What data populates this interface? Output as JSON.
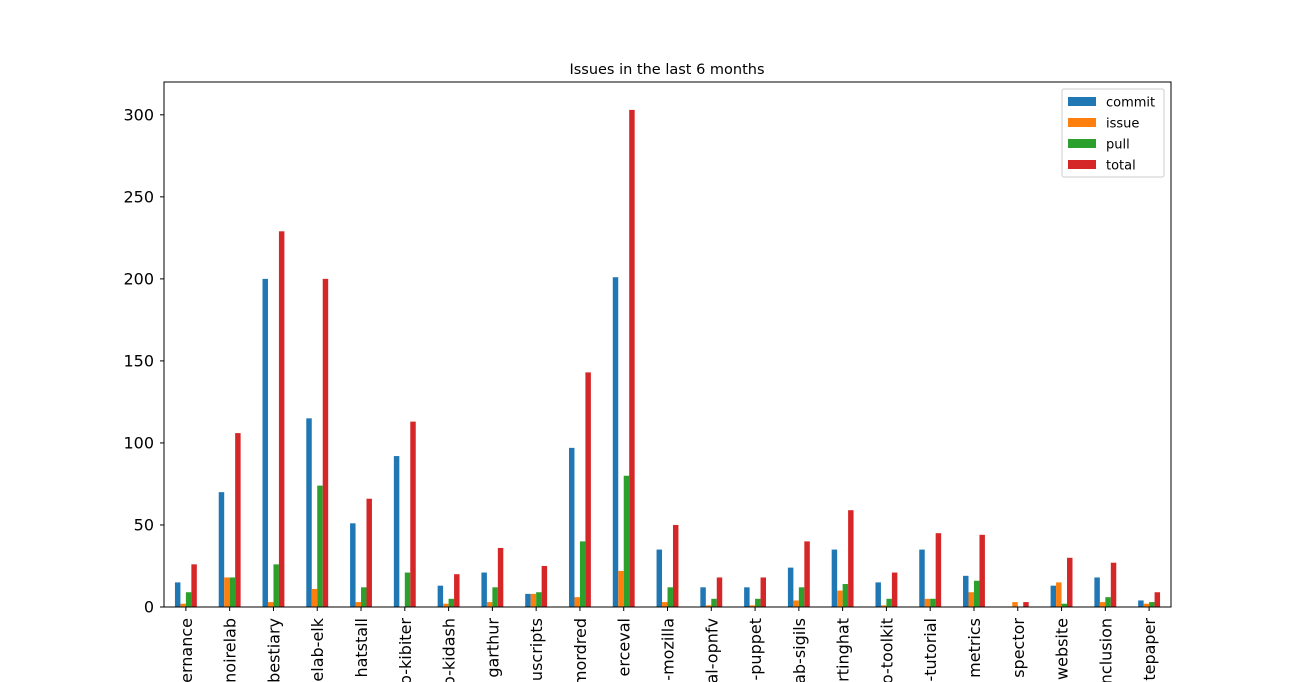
{
  "chart_data": {
    "type": "bar",
    "title": "Issues in the last 6 months",
    "xlabel": "",
    "ylabel": "",
    "ylim": [
      0,
      320
    ],
    "yticks": [
      0,
      50,
      100,
      150,
      200,
      250,
      300
    ],
    "grid": false,
    "legend_position": "top-right",
    "categories": [
      "ernance",
      "noirelab",
      "bestiary",
      "elab-elk",
      "hatstall",
      "o-kibiter",
      "o-kidash",
      "garthur",
      "uscripts",
      "mordred",
      "erceval",
      "-mozilla",
      "al-opnfv",
      "-puppet",
      "ab-sigils",
      "rtinghat",
      "o-toolkit",
      "-tutorial",
      "metrics",
      "spector",
      "website",
      "nclusion",
      "tepaper"
    ],
    "series": [
      {
        "name": "commit",
        "color": "#1f77b4",
        "values": [
          15,
          70,
          200,
          115,
          51,
          92,
          13,
          21,
          8,
          97,
          201,
          35,
          12,
          12,
          24,
          35,
          15,
          35,
          19,
          0,
          13,
          18,
          4
        ]
      },
      {
        "name": "issue",
        "color": "#ff7f0e",
        "values": [
          2,
          18,
          3,
          11,
          3,
          0,
          2,
          3,
          8,
          6,
          22,
          3,
          1,
          1,
          4,
          10,
          1,
          5,
          9,
          3,
          15,
          3,
          2
        ]
      },
      {
        "name": "pull",
        "color": "#2ca02c",
        "values": [
          9,
          18,
          26,
          74,
          12,
          21,
          5,
          12,
          9,
          40,
          80,
          12,
          5,
          5,
          12,
          14,
          5,
          5,
          16,
          0,
          2,
          6,
          3
        ]
      },
      {
        "name": "total",
        "color": "#d62728",
        "values": [
          26,
          106,
          229,
          200,
          66,
          113,
          20,
          36,
          25,
          143,
          303,
          50,
          18,
          18,
          40,
          59,
          21,
          45,
          44,
          3,
          30,
          27,
          9
        ]
      }
    ]
  }
}
